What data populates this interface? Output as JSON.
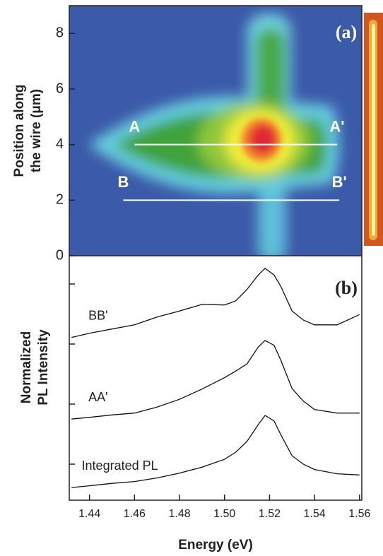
{
  "chart_data": [
    {
      "type": "image",
      "panel": "(a)",
      "ylabel": [
        "Position along",
        "the wire (μm)"
      ],
      "xlim": [
        1.431,
        1.561
      ],
      "ylim": [
        0,
        9
      ],
      "yticks": [
        0,
        2,
        4,
        6,
        8
      ],
      "cuts": [
        {
          "start": "A",
          "end": "A'",
          "y": 4,
          "x": [
            1.46,
            1.55
          ]
        },
        {
          "start": "B",
          "end": "B'",
          "y": 2,
          "x": [
            1.455,
            1.551
          ]
        }
      ]
    },
    {
      "type": "line",
      "panel": "(b)",
      "ylabel": [
        "Normalized",
        "PL Intensity"
      ],
      "xlabel": "Energy (eV)",
      "xlim": [
        1.431,
        1.561
      ],
      "ylim": [
        0.4,
        4.47
      ],
      "xticks": [
        1.44,
        1.46,
        1.48,
        {
          "value": 1.5,
          "label": "1.50"
        },
        1.52,
        1.54,
        1.56
      ],
      "yticks": [
        1,
        2,
        3,
        4
      ],
      "x": [
        1.432,
        1.44,
        1.45,
        1.46,
        1.47,
        1.48,
        1.49,
        1.5,
        1.505,
        1.51,
        1.515,
        1.518,
        1.522,
        1.525,
        1.53,
        1.535,
        1.54,
        1.55,
        1.56
      ],
      "series": [
        {
          "name": "Integrated PL",
          "color": "#111111",
          "values": [
            0.61,
            0.64,
            0.68,
            0.71,
            0.77,
            0.85,
            0.95,
            1.08,
            1.2,
            1.38,
            1.66,
            1.81,
            1.72,
            1.49,
            1.14,
            1.0,
            0.91,
            0.84,
            0.82
          ]
        },
        {
          "name": "AA'",
          "color": "#111111",
          "values": [
            1.75,
            1.78,
            1.82,
            1.85,
            1.95,
            2.08,
            2.25,
            2.44,
            2.55,
            2.67,
            2.95,
            3.06,
            2.98,
            2.73,
            2.26,
            2.05,
            1.91,
            1.85,
            1.85
          ]
        },
        {
          "name": "BB'",
          "color": "#111111",
          "values": [
            3.11,
            3.18,
            3.25,
            3.32,
            3.45,
            3.55,
            3.66,
            3.65,
            3.72,
            3.91,
            4.15,
            4.26,
            4.15,
            3.96,
            3.55,
            3.4,
            3.32,
            3.32,
            3.49
          ]
        }
      ]
    }
  ]
}
